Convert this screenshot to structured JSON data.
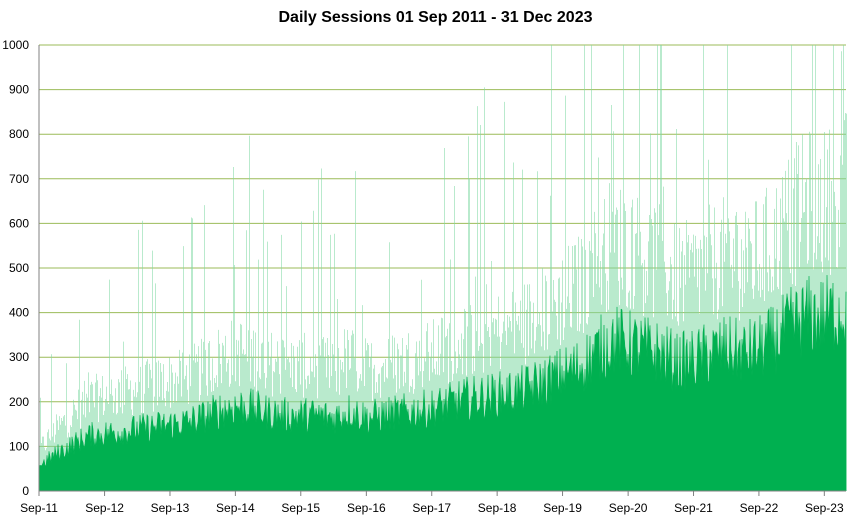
{
  "chart_data": {
    "type": "area",
    "title": "Daily Sessions 01 Sep 2011 - 31 Dec 2023",
    "xlabel": "",
    "ylabel": "",
    "ylim": [
      0,
      1000
    ],
    "xlim": [
      "2011-09-01",
      "2023-12-31"
    ],
    "y_ticks": [
      0,
      100,
      200,
      300,
      400,
      500,
      600,
      700,
      800,
      900,
      1000
    ],
    "x_tick_labels": [
      "Sep-11",
      "Sep-12",
      "Sep-13",
      "Sep-14",
      "Sep-15",
      "Sep-16",
      "Sep-17",
      "Sep-18",
      "Sep-19",
      "Sep-20",
      "Sep-21",
      "Sep-22",
      "Sep-23"
    ],
    "grid": "horizontal",
    "legend": "none",
    "fill_color": "#00b050",
    "grid_color": "#9bbb59",
    "series": [
      {
        "x": [
          "2011-09-01",
          "2011-12-01",
          "2012-03-01",
          "2012-06-01",
          "2012-09-01",
          "2012-12-01",
          "2013-03-01",
          "2013-06-01",
          "2013-09-01",
          "2013-12-01",
          "2014-03-01",
          "2014-06-01",
          "2014-09-01",
          "2014-12-01",
          "2015-03-01",
          "2015-06-01",
          "2015-09-01",
          "2015-12-01",
          "2016-03-01",
          "2016-06-01",
          "2016-09-01",
          "2016-12-01",
          "2017-03-01",
          "2017-06-01",
          "2017-09-01",
          "2017-12-01",
          "2018-03-01",
          "2018-06-01",
          "2018-09-01",
          "2018-12-01",
          "2019-03-01",
          "2019-06-01",
          "2019-09-01",
          "2019-12-01",
          "2020-03-01",
          "2020-06-01",
          "2020-09-01",
          "2020-12-01",
          "2021-03-01",
          "2021-06-01",
          "2021-09-01",
          "2021-12-01",
          "2022-03-01",
          "2022-06-01",
          "2022-09-01",
          "2022-12-01",
          "2023-03-01",
          "2023-06-01",
          "2023-09-01",
          "2023-12-31"
        ],
        "values": [
          55,
          80,
          100,
          120,
          125,
          130,
          135,
          140,
          145,
          150,
          160,
          175,
          185,
          180,
          170,
          165,
          165,
          165,
          160,
          175,
          160,
          165,
          170,
          175,
          180,
          190,
          200,
          205,
          210,
          215,
          225,
          240,
          255,
          270,
          300,
          330,
          320,
          310,
          300,
          280,
          285,
          300,
          310,
          300,
          310,
          330,
          360,
          380,
          380,
          400
        ]
      }
    ]
  }
}
